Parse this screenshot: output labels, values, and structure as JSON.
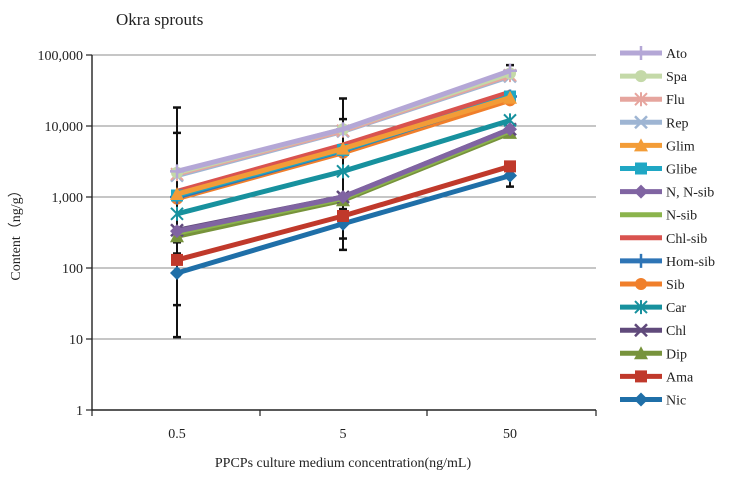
{
  "chart_data": {
    "type": "line",
    "title": "Okra sprouts",
    "xlabel": "PPCPs culture medium concentration(ng/mL)",
    "ylabel": "Content（ng/g）",
    "x": [
      "0.5",
      "5",
      "50"
    ],
    "y_scale": "log",
    "ylim": [
      1,
      100000
    ],
    "y_ticks": [
      "1",
      "10",
      "100",
      "1,000",
      "10,000",
      "100,000"
    ],
    "grid": "horizontal",
    "legend_position": "right",
    "series": [
      {
        "name": "Ato",
        "color": "#b4a7d6",
        "marker": "plus",
        "values": [
          2300,
          9000,
          60000
        ],
        "err": [
          null,
          null,
          12000
        ]
      },
      {
        "name": "Spa",
        "color": "#c4d9a8",
        "marker": "circle",
        "values": [
          2200,
          9000,
          55000
        ],
        "err": [
          null,
          null,
          null
        ]
      },
      {
        "name": "Flu",
        "color": "#e6a59e",
        "marker": "asterisk",
        "values": [
          2100,
          8600,
          52000
        ],
        "err": [
          null,
          null,
          null
        ]
      },
      {
        "name": "Rep",
        "color": "#9eb5d3",
        "marker": "x",
        "values": [
          2000,
          8400,
          50000
        ],
        "err": [
          null,
          null,
          null
        ]
      },
      {
        "name": "Glim",
        "color": "#f39c37",
        "marker": "triangle",
        "values": [
          1100,
          4800,
          25000
        ],
        "err": [
          null,
          null,
          null
        ]
      },
      {
        "name": "Glibe",
        "color": "#1fa7c4",
        "marker": "square",
        "values": [
          1050,
          4600,
          26000
        ],
        "err": [
          null,
          null,
          null
        ]
      },
      {
        "name": "N, N-sib",
        "color": "#8064a2",
        "marker": "diamond",
        "values": [
          330,
          1000,
          9000
        ],
        "err": [
          null,
          null,
          null
        ]
      },
      {
        "name": "N-sib",
        "color": "#8bb44c",
        "marker": "none",
        "values": [
          310,
          950,
          8500
        ],
        "err": [
          null,
          null,
          null
        ]
      },
      {
        "name": "Chl-sib",
        "color": "#d9534f",
        "marker": "none",
        "values": [
          1200,
          5400,
          30000
        ],
        "err": [
          17000,
          19000,
          null
        ]
      },
      {
        "name": "Hom-sib",
        "color": "#2e75b6",
        "marker": "plus",
        "values": [
          1000,
          4500,
          26000
        ],
        "err": [
          7000,
          8000,
          null
        ]
      },
      {
        "name": "Sib",
        "color": "#f07f2b",
        "marker": "circle",
        "values": [
          950,
          4200,
          23000
        ],
        "err": [
          null,
          null,
          null
        ]
      },
      {
        "name": "Car",
        "color": "#17919e",
        "marker": "asterisk",
        "values": [
          580,
          2300,
          12000
        ],
        "err": [
          null,
          null,
          null
        ]
      },
      {
        "name": "Chl",
        "color": "#604a7b",
        "marker": "x",
        "values": [
          340,
          1000,
          9000
        ],
        "err": [
          null,
          null,
          null
        ]
      },
      {
        "name": "Dip",
        "color": "#77933c",
        "marker": "triangle",
        "values": [
          280,
          900,
          8000
        ],
        "err": [
          null,
          null,
          null
        ]
      },
      {
        "name": "Ama",
        "color": "#c0392b",
        "marker": "square",
        "values": [
          130,
          540,
          2700
        ],
        "err": [
          100,
          280,
          null
        ]
      },
      {
        "name": "Nic",
        "color": "#1f6fa8",
        "marker": "diamond",
        "values": [
          85,
          420,
          2000
        ],
        "err": [
          75,
          240,
          600
        ]
      }
    ]
  }
}
